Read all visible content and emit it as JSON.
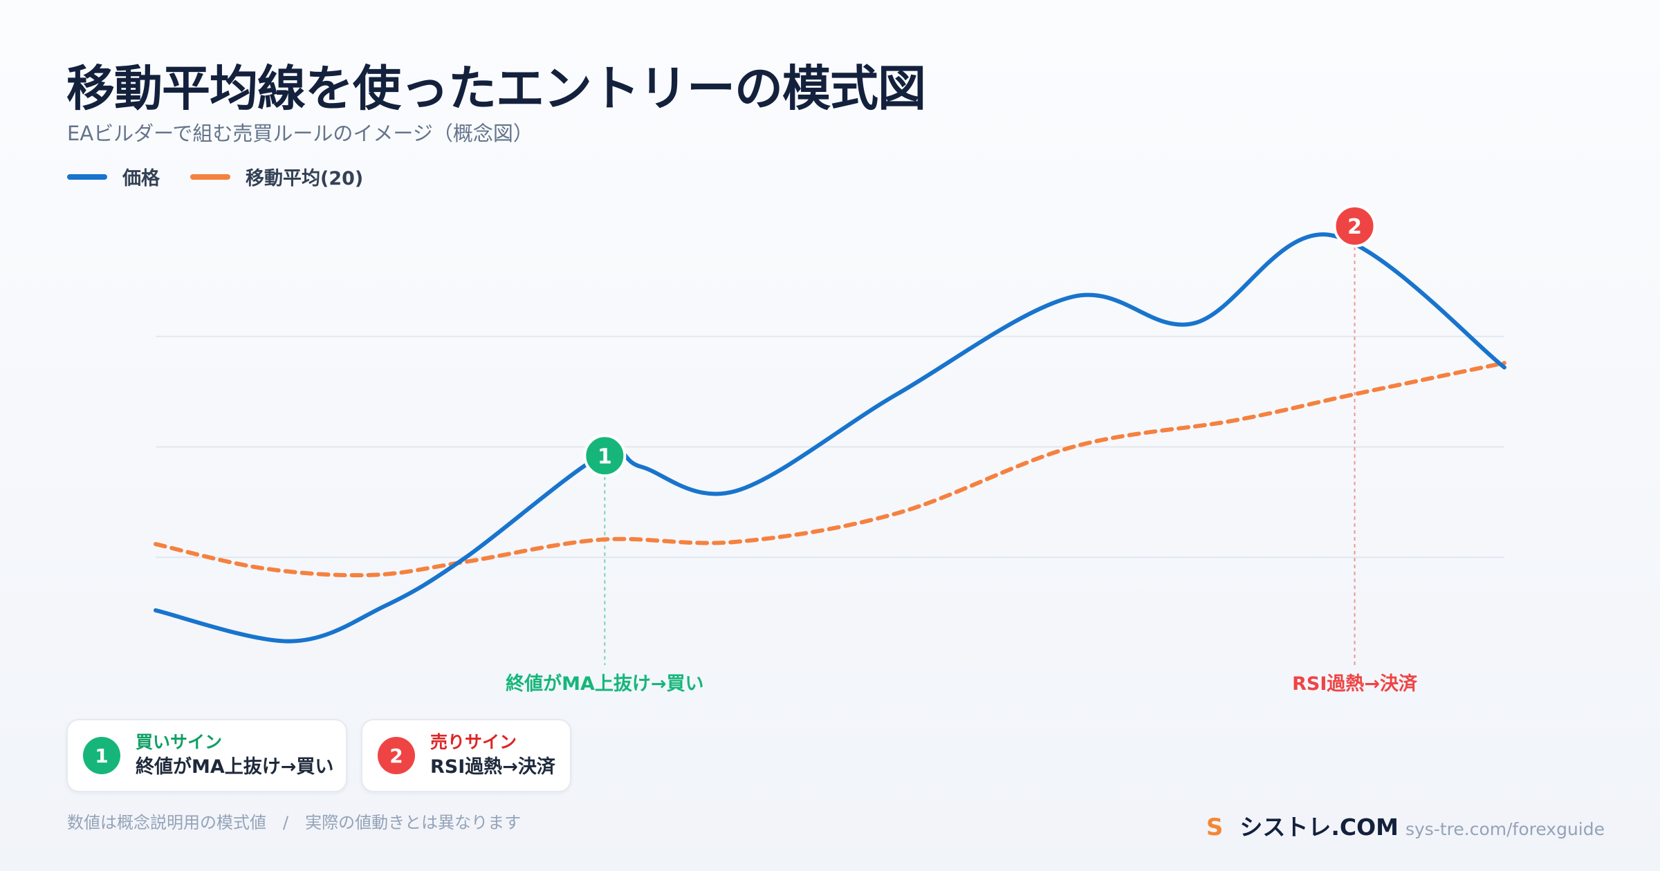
{
  "header": {
    "title": "移動平均線を使ったエントリーの模式図",
    "subtitle": "EAビルダーで組む売買ルールのイメージ（概念図）"
  },
  "legend": {
    "items": [
      {
        "label": "価格",
        "color": "#1874cd"
      },
      {
        "label": "移動平均(20)",
        "color": "#f5813f"
      }
    ]
  },
  "chart_data": {
    "type": "line",
    "xlim": [
      0,
      1
    ],
    "ylim": [
      0,
      1
    ],
    "grid": true,
    "series": [
      {
        "name": "価格",
        "color": "#1874cd",
        "style": "solid",
        "points": [
          [
            0.0,
            0.13
          ],
          [
            0.1,
            0.06
          ],
          [
            0.17,
            0.14
          ],
          [
            0.23,
            0.25
          ],
          [
            0.33,
            0.48
          ],
          [
            0.36,
            0.455
          ],
          [
            0.43,
            0.4
          ],
          [
            0.55,
            0.62
          ],
          [
            0.68,
            0.84
          ],
          [
            0.77,
            0.78
          ],
          [
            0.87,
            0.98
          ],
          [
            1.0,
            0.68
          ]
        ]
      },
      {
        "name": "移動平均(20)",
        "color": "#f5813f",
        "style": "dashed",
        "points": [
          [
            0.0,
            0.28
          ],
          [
            0.08,
            0.225
          ],
          [
            0.16,
            0.21
          ],
          [
            0.23,
            0.24
          ],
          [
            0.33,
            0.29
          ],
          [
            0.43,
            0.285
          ],
          [
            0.55,
            0.35
          ],
          [
            0.68,
            0.5
          ],
          [
            0.8,
            0.56
          ],
          [
            0.89,
            0.62
          ],
          [
            1.0,
            0.69
          ]
        ]
      }
    ],
    "annotations": [
      {
        "marker": "1",
        "x": 0.333,
        "y": 0.48,
        "label": "終値がMA上抜け→買い",
        "color": "#16b67a"
      },
      {
        "marker": "2",
        "x": 0.889,
        "y": 1.0,
        "label": "RSI過熱→決済",
        "color": "#ef4444"
      }
    ]
  },
  "cards": [
    {
      "marker": "1",
      "head": "買いサイン",
      "desc": "終値がMA上抜け→買い",
      "color": "#16b67a",
      "head_color": "#0f9f65"
    },
    {
      "marker": "2",
      "head": "売りサイン",
      "desc": "RSI過熱→決済",
      "color": "#ef4444",
      "head_color": "#dc2626"
    }
  ],
  "footer": {
    "note": "数値は概念説明用の模式値　/　実際の値動きとは異なります",
    "brand_mark": "S",
    "brand_name": "シストレ.COM",
    "brand_url": "sys-tre.com/forexguide"
  }
}
